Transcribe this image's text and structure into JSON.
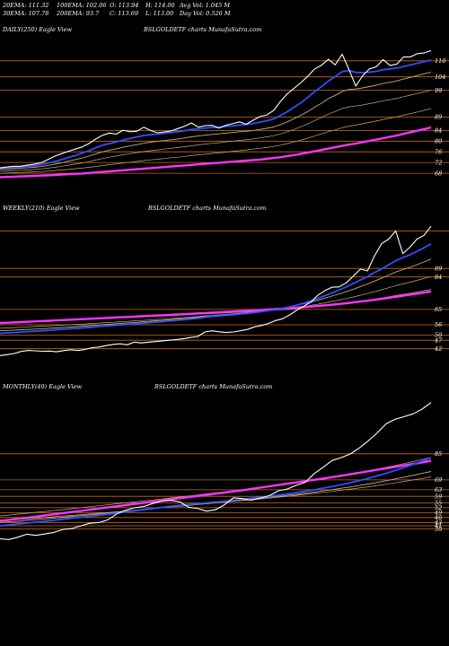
{
  "header": {
    "cells": [
      [
        "20EMA: 111.32",
        "100EMA: 102.06",
        "O: 113.94",
        "H: 114.00",
        "Avg Vol: 1.045 M"
      ],
      [
        "30EMA: 107.78",
        "200EMA: 93.7",
        "C: 113.69",
        "L: 113.00",
        "Day Vol: 0.526  M"
      ]
    ]
  },
  "colors": {
    "background": "#000000",
    "price": "#ffffff",
    "ema20": "#2f4fff",
    "ema200": "#ff33ff",
    "ema_other": "#c8a882",
    "level": "#c86a1a"
  },
  "chart_data": [
    {
      "type": "line",
      "id": "daily",
      "title_left": "DAILY(250) Eagle  View",
      "title_center": "BSLGOLDETF charts MunafaSutra.com",
      "levels": [
        110,
        104,
        99,
        89,
        84,
        80,
        76,
        72,
        68
      ],
      "level_labels": [
        "110",
        "104",
        "99",
        "89",
        "84",
        "80",
        "76",
        "72",
        "68"
      ],
      "ylim": [
        65,
        118
      ],
      "price": [
        70.0,
        70.3,
        70.6,
        70.6,
        71.0,
        71.4,
        71.9,
        73.1,
        74.4,
        75.3,
        76.2,
        77.0,
        77.8,
        79.1,
        80.8,
        82.2,
        83.0,
        82.6,
        84.1,
        83.5,
        83.7,
        85.2,
        84.0,
        83.1,
        83.4,
        83.8,
        84.7,
        85.6,
        86.8,
        85.2,
        85.8,
        85.9,
        84.9,
        85.9,
        86.5,
        87.2,
        86.3,
        87.8,
        89.2,
        89.8,
        91.5,
        94.9,
        97.7,
        99.8,
        101.9,
        104.3,
        107.0,
        108.4,
        110.6,
        108.5,
        112.5,
        106.8,
        100.6,
        104.4,
        107.0,
        107.8,
        110.5,
        108.3,
        108.8,
        111.5,
        111.5,
        112.7,
        113.0,
        113.8
      ],
      "ema20": [
        70.0,
        70.1,
        70.2,
        70.4,
        70.6,
        70.8,
        71.2,
        71.8,
        72.4,
        73.1,
        73.9,
        74.6,
        75.5,
        76.4,
        77.5,
        78.5,
        79.1,
        79.7,
        80.4,
        81.0,
        81.5,
        82.1,
        82.4,
        82.6,
        82.9,
        83.2,
        83.5,
        83.9,
        84.4,
        84.6,
        84.9,
        85.1,
        85.2,
        85.5,
        85.7,
        86.0,
        86.2,
        86.6,
        87.1,
        87.6,
        88.3,
        89.6,
        91.0,
        92.7,
        94.4,
        96.4,
        98.5,
        100.4,
        102.5,
        104.1,
        106.0,
        106.4,
        105.7,
        105.6,
        105.8,
        106.1,
        106.7,
        107.0,
        107.3,
        107.9,
        108.5,
        109.1,
        109.7,
        110.3
      ],
      "ema30": [
        69.5,
        69.6,
        69.7,
        69.9,
        70.0,
        70.2,
        70.5,
        70.9,
        71.4,
        71.9,
        72.5,
        73.1,
        73.7,
        74.4,
        75.2,
        76.0,
        76.6,
        77.1,
        77.7,
        78.2,
        78.7,
        79.2,
        79.6,
        79.9,
        80.2,
        80.5,
        80.8,
        81.2,
        81.6,
        81.9,
        82.2,
        82.5,
        82.7,
        83.0,
        83.2,
        83.5,
        83.7,
        84.0,
        84.4,
        84.8,
        85.3,
        86.2,
        87.2,
        88.4,
        89.7,
        91.1,
        92.7,
        94.2,
        95.9,
        97.1,
        98.6,
        99.3,
        99.5,
        99.9,
        100.4,
        100.9,
        101.6,
        102.0,
        102.5,
        103.2,
        103.8,
        104.5,
        105.2,
        105.8
      ],
      "ema50": [
        68.8,
        68.9,
        69.0,
        69.1,
        69.2,
        69.4,
        69.6,
        69.9,
        70.2,
        70.6,
        71.0,
        71.4,
        71.8,
        72.3,
        72.9,
        73.5,
        74.0,
        74.4,
        74.9,
        75.3,
        75.7,
        76.1,
        76.4,
        76.7,
        77.0,
        77.3,
        77.6,
        77.9,
        78.3,
        78.6,
        78.9,
        79.2,
        79.4,
        79.7,
        80.0,
        80.3,
        80.5,
        80.8,
        81.2,
        81.6,
        82.0,
        82.7,
        83.5,
        84.4,
        85.4,
        86.5,
        87.7,
        88.9,
        90.1,
        91.1,
        92.2,
        92.8,
        93.1,
        93.5,
        94.0,
        94.5,
        95.1,
        95.5,
        96.0,
        96.6,
        97.2,
        97.8,
        98.4,
        99.0
      ],
      "ema100": [
        68.0,
        68.1,
        68.2,
        68.3,
        68.4,
        68.5,
        68.6,
        68.8,
        69.0,
        69.2,
        69.4,
        69.7,
        69.9,
        70.2,
        70.5,
        70.9,
        71.2,
        71.5,
        71.8,
        72.1,
        72.4,
        72.7,
        73.0,
        73.2,
        73.5,
        73.8,
        74.0,
        74.3,
        74.6,
        74.9,
        75.1,
        75.4,
        75.6,
        75.9,
        76.2,
        76.4,
        76.7,
        77.0,
        77.3,
        77.6,
        78.0,
        78.5,
        79.1,
        79.7,
        80.4,
        81.1,
        81.9,
        82.7,
        83.5,
        84.2,
        85.0,
        85.6,
        86.0,
        86.5,
        87.0,
        87.5,
        88.1,
        88.6,
        89.1,
        89.7,
        90.3,
        90.9,
        91.5,
        92.1
      ],
      "ema200": [
        66.5,
        66.6,
        66.7,
        66.8,
        66.9,
        67.0,
        67.1,
        67.2,
        67.3,
        67.5,
        67.6,
        67.8,
        67.9,
        68.1,
        68.3,
        68.5,
        68.7,
        68.9,
        69.1,
        69.3,
        69.5,
        69.7,
        69.9,
        70.1,
        70.3,
        70.5,
        70.7,
        70.9,
        71.1,
        71.3,
        71.5,
        71.7,
        71.9,
        72.1,
        72.3,
        72.5,
        72.7,
        72.9,
        73.1,
        73.4,
        73.7,
        74.0,
        74.4,
        74.8,
        75.2,
        75.7,
        76.2,
        76.7,
        77.2,
        77.7,
        78.2,
        78.7,
        79.1,
        79.6,
        80.1,
        80.6,
        81.1,
        81.6,
        82.1,
        82.7,
        83.3,
        83.9,
        84.5,
        85.1
      ]
    },
    {
      "type": "line",
      "id": "weekly",
      "title_left": "WEEKLY(210) Eagle  View",
      "title_center": "BSLGOLDETF charts MunafaSutra.com",
      "levels": [
        111,
        89,
        84,
        65,
        56,
        50,
        47,
        42
      ],
      "level_labels": [
        "",
        "89",
        "84",
        "65",
        "56",
        "50",
        "47",
        "42"
      ],
      "ylim": [
        35,
        118
      ],
      "price": [
        38.0,
        38.5,
        39.2,
        40.4,
        41.0,
        40.8,
        40.5,
        40.6,
        40.2,
        40.9,
        41.4,
        41.0,
        41.5,
        42.6,
        43.0,
        43.8,
        44.5,
        44.9,
        44.3,
        45.8,
        45.4,
        45.8,
        46.2,
        46.6,
        47.0,
        47.4,
        47.9,
        48.6,
        49.2,
        51.8,
        52.5,
        51.9,
        51.5,
        51.8,
        52.5,
        53.3,
        54.8,
        55.6,
        56.8,
        58.5,
        59.6,
        61.8,
        64.6,
        67.0,
        69.3,
        73.4,
        76.1,
        78.0,
        78.2,
        80.6,
        84.5,
        88.6,
        87.6,
        96.3,
        103.5,
        106.2,
        110.9,
        97.7,
        101.4,
        106.2,
        108.4,
        113.7
      ],
      "ema20": [
        51.0,
        51.3,
        51.5,
        51.8,
        52.0,
        52.3,
        52.5,
        52.8,
        53.1,
        53.4,
        53.7,
        54.0,
        54.3,
        54.6,
        55.0,
        55.3,
        55.6,
        55.9,
        56.2,
        56.6,
        56.9,
        57.2,
        57.6,
        57.9,
        58.3,
        58.6,
        59.0,
        59.4,
        59.8,
        60.4,
        60.9,
        61.2,
        61.6,
        61.9,
        62.3,
        62.7,
        63.2,
        63.7,
        64.3,
        64.9,
        65.6,
        66.5,
        67.5,
        68.7,
        70.1,
        71.5,
        73.1,
        74.7,
        76.4,
        78.2,
        80.1,
        82.2,
        84.2,
        86.6,
        88.7,
        91.1,
        93.5,
        95.3,
        97.0,
        99.0,
        101.1,
        103.4
      ],
      "ema30": [
        52.5,
        52.7,
        52.9,
        53.1,
        53.3,
        53.5,
        53.7,
        54.0,
        54.2,
        54.5,
        54.7,
        55.0,
        55.3,
        55.6,
        55.9,
        56.2,
        56.5,
        56.8,
        57.1,
        57.4,
        57.7,
        58.0,
        58.3,
        58.6,
        59.0,
        59.3,
        59.6,
        60.0,
        60.4,
        60.9,
        61.3,
        61.7,
        62.0,
        62.4,
        62.8,
        63.2,
        63.7,
        64.2,
        64.7,
        65.3,
        65.9,
        66.6,
        67.4,
        68.3,
        69.3,
        70.4,
        71.6,
        72.8,
        74.1,
        75.4,
        76.8,
        78.4,
        79.9,
        81.6,
        83.3,
        85.1,
        86.9,
        88.3,
        89.6,
        91.2,
        92.8,
        94.5
      ],
      "ema50": [
        54.0,
        54.2,
        54.4,
        54.6,
        54.8,
        55.0,
        55.2,
        55.4,
        55.6,
        55.8,
        56.1,
        56.3,
        56.5,
        56.8,
        57.0,
        57.3,
        57.5,
        57.8,
        58.0,
        58.3,
        58.5,
        58.8,
        59.1,
        59.3,
        59.6,
        59.9,
        60.2,
        60.5,
        60.8,
        61.2,
        61.5,
        61.8,
        62.1,
        62.4,
        62.7,
        63.1,
        63.4,
        63.8,
        64.2,
        64.6,
        65.0,
        65.5,
        66.1,
        66.7,
        67.4,
        68.1,
        68.9,
        69.7,
        70.5,
        71.4,
        72.3,
        73.3,
        74.3,
        75.4,
        76.5,
        77.7,
        78.9,
        79.9,
        80.9,
        82.0,
        83.1,
        84.3
      ],
      "ema100": [
        57.5,
        57.6,
        57.8,
        57.9,
        58.1,
        58.2,
        58.4,
        58.5,
        58.7,
        58.8,
        59.0,
        59.1,
        59.3,
        59.5,
        59.6,
        59.8,
        60.0,
        60.1,
        60.3,
        60.5,
        60.7,
        60.8,
        61.0,
        61.2,
        61.4,
        61.6,
        61.8,
        62.0,
        62.2,
        62.4,
        62.6,
        62.8,
        63.0,
        63.2,
        63.4,
        63.7,
        63.9,
        64.1,
        64.4,
        64.6,
        64.9,
        65.2,
        65.5,
        65.9,
        66.3,
        66.7,
        67.1,
        67.6,
        68.1,
        68.6,
        69.1,
        69.7,
        70.3,
        71.0,
        71.7,
        72.4,
        73.2,
        73.8,
        74.5,
        75.2,
        75.9,
        76.7
      ],
      "ema200": [
        57.0,
        57.2,
        57.4,
        57.6,
        57.8,
        58.0,
        58.2,
        58.4,
        58.6,
        58.8,
        59.0,
        59.2,
        59.4,
        59.6,
        59.8,
        60.0,
        60.2,
        60.4,
        60.6,
        60.8,
        61.0,
        61.2,
        61.4,
        61.6,
        61.8,
        62.0,
        62.2,
        62.5,
        62.7,
        62.9,
        63.1,
        63.3,
        63.6,
        63.8,
        64.0,
        64.2,
        64.5,
        64.7,
        65.0,
        65.2,
        65.5,
        65.8,
        66.1,
        66.4,
        66.7,
        67.0,
        67.4,
        67.8,
        68.2,
        68.6,
        69.1,
        69.6,
        70.1,
        70.6,
        71.2,
        71.8,
        72.4,
        73.0,
        73.6,
        74.2,
        74.8,
        75.5
      ]
    },
    {
      "type": "line",
      "id": "monthly",
      "title_left": "MONTHLY(49) Eagle  View",
      "title_center": "BSLGOLDETF charts MunafaSutra.com",
      "levels": [
        85,
        69,
        63,
        59,
        55,
        52,
        49,
        46,
        43,
        41,
        39
      ],
      "level_labels": [
        "85",
        "69",
        "63",
        "59",
        "55",
        "52",
        "49",
        "46",
        "43",
        "41",
        "39"
      ],
      "ylim": [
        30,
        120
      ],
      "price": [
        33.0,
        32.6,
        34.0,
        35.8,
        35.1,
        36.0,
        36.9,
        38.7,
        39.3,
        40.9,
        42.5,
        42.9,
        44.6,
        48.2,
        50.5,
        52.0,
        52.8,
        54.6,
        56.0,
        56.5,
        55.7,
        52.3,
        51.6,
        49.9,
        50.8,
        53.8,
        58.1,
        57.6,
        56.6,
        58.0,
        59.4,
        62.4,
        63.5,
        65.7,
        67.6,
        72.9,
        76.8,
        80.9,
        82.7,
        84.9,
        88.5,
        92.9,
        97.8,
        103.3,
        106.1,
        107.7,
        109.4,
        112.3,
        116.3
      ],
      "ema20": [
        41.0,
        41.5,
        42.1,
        42.6,
        43.2,
        43.8,
        44.4,
        45.0,
        45.6,
        46.2,
        46.8,
        47.4,
        48.0,
        48.7,
        49.4,
        50.1,
        50.8,
        51.5,
        52.2,
        52.9,
        53.5,
        54.0,
        54.5,
        55.0,
        55.5,
        56.0,
        56.6,
        57.2,
        57.8,
        58.4,
        59.1,
        59.8,
        60.5,
        61.3,
        62.1,
        63.0,
        64.0,
        65.0,
        66.1,
        67.3,
        68.6,
        70.0,
        71.5,
        73.1,
        74.8,
        76.6,
        78.5,
        80.5,
        82.6
      ],
      "ema30": [
        43.0,
        43.4,
        43.8,
        44.3,
        44.7,
        45.2,
        45.7,
        46.2,
        46.7,
        47.2,
        47.7,
        48.2,
        48.8,
        49.3,
        49.9,
        50.4,
        51.0,
        51.6,
        52.1,
        52.7,
        53.2,
        53.7,
        54.2,
        54.7,
        55.2,
        55.7,
        56.2,
        56.7,
        57.3,
        57.8,
        58.4,
        59.0,
        59.6,
        60.2,
        60.9,
        61.6,
        62.3,
        63.1,
        63.9,
        64.7,
        65.6,
        66.5,
        67.5,
        68.5,
        69.6,
        70.7,
        71.8,
        73.0,
        74.2
      ],
      "ema50": [
        44.0,
        44.4,
        44.8,
        45.2,
        45.6,
        46.0,
        46.5,
        46.9,
        47.3,
        47.8,
        48.2,
        48.7,
        49.1,
        49.6,
        50.0,
        50.5,
        51.0,
        51.5,
        52.0,
        52.5,
        52.9,
        53.4,
        53.9,
        54.4,
        54.9,
        55.4,
        55.9,
        56.4,
        56.9,
        57.4,
        57.9,
        58.5,
        59.0,
        59.6,
        60.2,
        60.8,
        61.4,
        62.0,
        62.7,
        63.4,
        64.1,
        64.8,
        65.6,
        66.4,
        67.2,
        68.1,
        69.0,
        69.9,
        70.9
      ],
      "ema100": [
        47.0,
        47.5,
        48.1,
        48.6,
        49.2,
        49.7,
        50.3,
        50.8,
        51.4,
        52.0,
        52.6,
        53.2,
        53.8,
        54.4,
        55.0,
        55.6,
        56.2,
        56.8,
        57.4,
        58.0,
        58.6,
        59.2,
        59.8,
        60.5,
        61.1,
        61.8,
        62.4,
        63.1,
        63.8,
        64.5,
        65.2,
        65.9,
        66.7,
        67.5,
        68.3,
        69.1,
        69.9,
        70.8,
        71.7,
        72.6,
        73.6,
        74.6,
        75.6,
        76.7,
        77.8,
        79.0,
        80.2,
        81.5,
        82.8
      ],
      "ema200": [
        44.0,
        44.6,
        45.3,
        45.9,
        46.6,
        47.3,
        48.0,
        48.7,
        49.4,
        50.1,
        50.8,
        51.5,
        52.2,
        52.9,
        53.6,
        54.3,
        55.0,
        55.7,
        56.4,
        57.1,
        57.8,
        58.5,
        59.2,
        59.9,
        60.6,
        61.3,
        62.0,
        62.7,
        63.5,
        64.3,
        65.1,
        65.9,
        66.7,
        67.5,
        68.3,
        69.1,
        69.9,
        70.7,
        71.6,
        72.5,
        73.4,
        74.3,
        75.2,
        76.1,
        77.0,
        77.9,
        78.8,
        79.7,
        80.7
      ]
    }
  ]
}
